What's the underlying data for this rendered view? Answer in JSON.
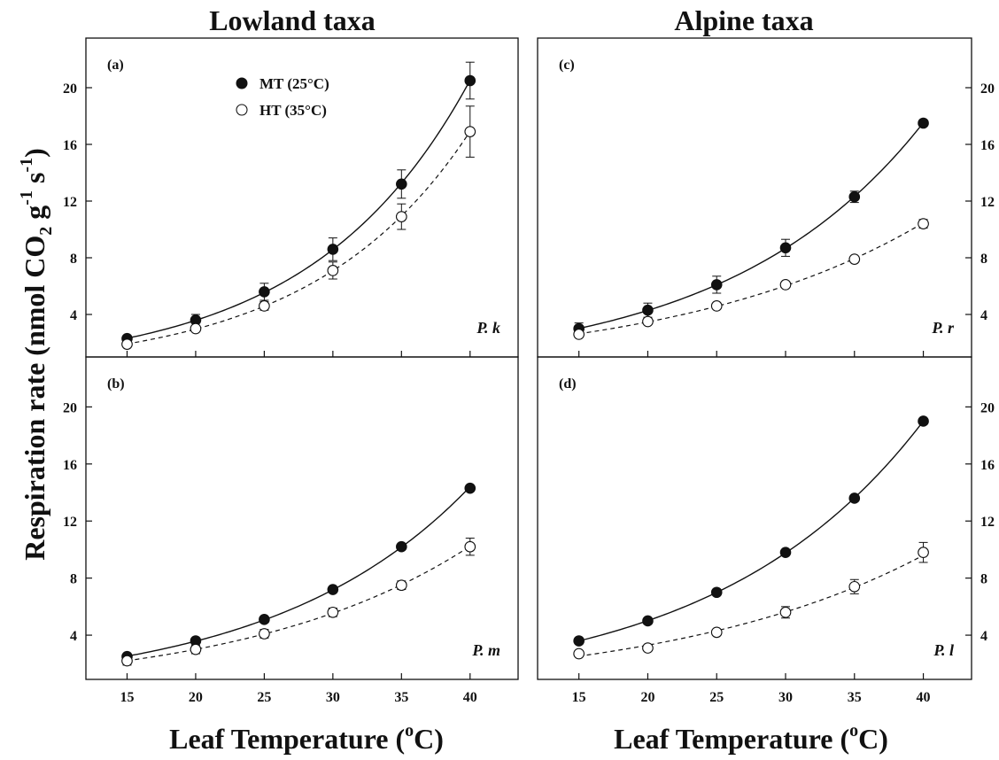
{
  "figure": {
    "column_titles": [
      "Lowland taxa",
      "Alpine taxa"
    ],
    "xlabel_main": "Leaf Temperature (",
    "xlabel_sup": "o",
    "xlabel_end": "C)",
    "ylabel": {
      "main": "Respiration rate (nmol CO",
      "sub": "2",
      "mid": " g",
      "sup1": "-1",
      "mid2": " s",
      "sup2": "-1",
      "end": ")"
    },
    "legend": [
      {
        "key": "mt",
        "label": "MT (25°C)",
        "marker": "filled-circle"
      },
      {
        "key": "ht",
        "label": "HT (35°C)",
        "marker": "open-circle"
      }
    ]
  },
  "chart_data": [
    {
      "type": "scatter",
      "panel": "(a)",
      "taxon": "P. k",
      "x": [
        15,
        20,
        25,
        30,
        35,
        40
      ],
      "xticks": [],
      "yticks": [
        "4",
        "8",
        "12",
        "16",
        "20"
      ],
      "xlim": [
        12,
        43.5
      ],
      "ylim": [
        1,
        23.5
      ],
      "y_axis_side": "left",
      "legend_placement": "top-left",
      "fit": "exponential",
      "series": [
        {
          "name": "MT (25°C)",
          "key": "mt",
          "values": [
            2.3,
            3.6,
            5.6,
            8.6,
            13.2,
            20.5
          ],
          "errors": [
            0.2,
            0.4,
            0.6,
            0.8,
            1.0,
            1.3
          ],
          "line": "solid"
        },
        {
          "name": "HT (35°C)",
          "key": "ht",
          "values": [
            1.9,
            3.0,
            4.6,
            7.1,
            10.9,
            16.9
          ],
          "errors": [
            0.2,
            0.2,
            0.3,
            0.6,
            0.9,
            1.8
          ],
          "line": "dashed"
        }
      ]
    },
    {
      "type": "scatter",
      "panel": "(c)",
      "taxon": "P. r",
      "x": [
        15,
        20,
        25,
        30,
        35,
        40
      ],
      "xticks": [],
      "yticks": [
        "4",
        "8",
        "12",
        "16",
        "20"
      ],
      "xlim": [
        12,
        43.5
      ],
      "ylim": [
        1,
        23.5
      ],
      "y_axis_side": "right",
      "fit": "exponential",
      "series": [
        {
          "name": "MT (25°C)",
          "key": "mt",
          "values": [
            3.0,
            4.3,
            6.1,
            8.7,
            12.3,
            17.5
          ],
          "errors": [
            0.4,
            0.5,
            0.6,
            0.6,
            0.4,
            0.2
          ],
          "line": "solid"
        },
        {
          "name": "HT (35°C)",
          "key": "ht",
          "values": [
            2.6,
            3.5,
            4.6,
            6.1,
            7.9,
            10.4
          ],
          "errors": [
            0.2,
            0.2,
            0.2,
            0.2,
            0.2,
            0.3
          ],
          "line": "dashed"
        }
      ]
    },
    {
      "type": "scatter",
      "panel": "(b)",
      "taxon": "P. m",
      "x": [
        15,
        20,
        25,
        30,
        35,
        40
      ],
      "xticks": [
        "15",
        "20",
        "25",
        "30",
        "35",
        "40"
      ],
      "yticks": [
        "4",
        "8",
        "12",
        "16",
        "20"
      ],
      "xlim": [
        12,
        43.5
      ],
      "ylim": [
        0.9,
        23.5
      ],
      "y_axis_side": "left",
      "fit": "exponential",
      "series": [
        {
          "name": "MT (25°C)",
          "key": "mt",
          "values": [
            2.5,
            3.6,
            5.1,
            7.2,
            10.2,
            14.3
          ],
          "errors": [
            0.2,
            0.2,
            0.2,
            0.2,
            0.2,
            0.2
          ],
          "line": "solid"
        },
        {
          "name": "HT (35°C)",
          "key": "ht",
          "values": [
            2.2,
            3.0,
            4.1,
            5.6,
            7.5,
            10.2
          ],
          "errors": [
            0.3,
            0.3,
            0.3,
            0.3,
            0.3,
            0.6
          ],
          "line": "dashed"
        }
      ]
    },
    {
      "type": "scatter",
      "panel": "(d)",
      "taxon": "P. l",
      "x": [
        15,
        20,
        25,
        30,
        35,
        40
      ],
      "xticks": [
        "15",
        "20",
        "25",
        "30",
        "35",
        "40"
      ],
      "yticks": [
        "4",
        "8",
        "12",
        "16",
        "20"
      ],
      "xlim": [
        12,
        43.5
      ],
      "ylim": [
        0.9,
        23.5
      ],
      "y_axis_side": "right",
      "fit": "exponential",
      "series": [
        {
          "name": "MT (25°C)",
          "key": "mt",
          "values": [
            3.6,
            5.0,
            7.0,
            9.8,
            13.6,
            19.0
          ],
          "errors": [
            0.2,
            0.2,
            0.2,
            0.2,
            0.2,
            0.2
          ],
          "line": "solid"
        },
        {
          "name": "HT (35°C)",
          "key": "ht",
          "values": [
            2.7,
            3.1,
            4.2,
            5.6,
            7.4,
            9.8
          ],
          "errors": [
            0.2,
            0.2,
            0.2,
            0.4,
            0.5,
            0.7
          ],
          "line": "dashed"
        }
      ]
    }
  ]
}
